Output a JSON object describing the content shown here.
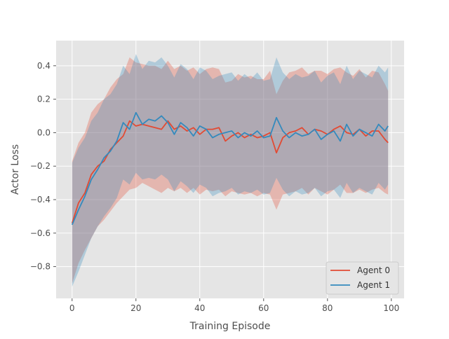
{
  "chart_data": {
    "type": "line",
    "title": "",
    "xlabel": "Training Episode",
    "ylabel": "Actor Loss",
    "xlim": [
      -5,
      104
    ],
    "ylim": [
      -0.99,
      0.55
    ],
    "xticks": [
      0,
      20,
      40,
      60,
      80,
      100
    ],
    "yticks": [
      -0.8,
      -0.6,
      -0.4,
      -0.2,
      0.0,
      0.2,
      0.4
    ],
    "xtick_labels": [
      "0",
      "20",
      "40",
      "60",
      "80",
      "100"
    ],
    "ytick_labels": [
      "−0.8",
      "−0.6",
      "−0.4",
      "−0.2",
      "0.0",
      "0.2",
      "0.4"
    ],
    "grid": true,
    "legend_position": "lower-right",
    "plot_background": "#e5e5e5",
    "grid_color": "#ffffff",
    "shaded_band": "mean ± std",
    "series": [
      {
        "name": "Agent 0",
        "color": "#e24a33",
        "x": [
          0,
          2,
          4,
          6,
          8,
          10,
          12,
          14,
          16,
          18,
          20,
          22,
          24,
          26,
          28,
          30,
          32,
          34,
          36,
          38,
          40,
          42,
          44,
          46,
          48,
          50,
          52,
          54,
          56,
          58,
          60,
          62,
          64,
          66,
          68,
          70,
          72,
          74,
          76,
          78,
          80,
          82,
          84,
          86,
          88,
          90,
          92,
          94,
          96,
          98,
          99
        ],
        "mean": [
          -0.54,
          -0.42,
          -0.36,
          -0.25,
          -0.2,
          -0.17,
          -0.1,
          -0.06,
          -0.02,
          0.07,
          0.04,
          0.05,
          0.04,
          0.03,
          0.02,
          0.07,
          0.02,
          0.04,
          0.01,
          0.03,
          -0.01,
          0.02,
          0.02,
          0.03,
          -0.05,
          -0.02,
          0.0,
          -0.03,
          -0.01,
          -0.03,
          -0.02,
          0.0,
          -0.12,
          -0.03,
          0.0,
          0.01,
          0.03,
          -0.01,
          0.02,
          0.01,
          -0.01,
          0.02,
          0.04,
          0.0,
          -0.01,
          0.02,
          -0.02,
          0.01,
          0.01,
          -0.04,
          -0.06
        ],
        "lower": [
          -0.9,
          -0.78,
          -0.7,
          -0.63,
          -0.56,
          -0.52,
          -0.47,
          -0.42,
          -0.38,
          -0.34,
          -0.33,
          -0.3,
          -0.32,
          -0.34,
          -0.36,
          -0.33,
          -0.35,
          -0.33,
          -0.36,
          -0.33,
          -0.37,
          -0.34,
          -0.35,
          -0.34,
          -0.38,
          -0.35,
          -0.36,
          -0.37,
          -0.36,
          -0.38,
          -0.36,
          -0.37,
          -0.46,
          -0.37,
          -0.36,
          -0.35,
          -0.33,
          -0.37,
          -0.33,
          -0.35,
          -0.37,
          -0.34,
          -0.31,
          -0.36,
          -0.36,
          -0.34,
          -0.36,
          -0.34,
          -0.33,
          -0.36,
          -0.37
        ],
        "upper": [
          -0.17,
          -0.06,
          0.0,
          0.12,
          0.17,
          0.2,
          0.27,
          0.32,
          0.35,
          0.45,
          0.42,
          0.41,
          0.4,
          0.4,
          0.38,
          0.43,
          0.38,
          0.4,
          0.37,
          0.39,
          0.35,
          0.38,
          0.39,
          0.38,
          0.3,
          0.31,
          0.35,
          0.33,
          0.34,
          0.32,
          0.32,
          0.37,
          0.23,
          0.31,
          0.36,
          0.37,
          0.39,
          0.35,
          0.37,
          0.37,
          0.35,
          0.38,
          0.39,
          0.36,
          0.34,
          0.38,
          0.33,
          0.37,
          0.36,
          0.29,
          0.25
        ]
      },
      {
        "name": "Agent 1",
        "color": "#348abd",
        "x": [
          0,
          2,
          4,
          6,
          8,
          10,
          12,
          14,
          16,
          18,
          20,
          22,
          24,
          26,
          28,
          30,
          32,
          34,
          36,
          38,
          40,
          42,
          44,
          46,
          48,
          50,
          52,
          54,
          56,
          58,
          60,
          62,
          64,
          66,
          68,
          70,
          72,
          74,
          76,
          78,
          80,
          82,
          84,
          86,
          88,
          90,
          92,
          94,
          96,
          98,
          99
        ],
        "mean": [
          -0.55,
          -0.46,
          -0.38,
          -0.28,
          -0.22,
          -0.15,
          -0.11,
          -0.05,
          0.06,
          0.02,
          0.12,
          0.05,
          0.08,
          0.07,
          0.1,
          0.06,
          -0.01,
          0.06,
          0.03,
          -0.02,
          0.04,
          0.02,
          -0.03,
          -0.01,
          0.0,
          0.01,
          -0.03,
          0.0,
          -0.02,
          0.01,
          -0.03,
          -0.02,
          0.09,
          0.01,
          -0.03,
          0.0,
          -0.02,
          -0.01,
          0.02,
          -0.04,
          -0.01,
          0.01,
          -0.05,
          0.05,
          -0.02,
          0.02,
          0.0,
          -0.02,
          0.05,
          0.01,
          0.04
        ],
        "lower": [
          -0.92,
          -0.83,
          -0.73,
          -0.63,
          -0.56,
          -0.5,
          -0.45,
          -0.39,
          -0.28,
          -0.31,
          -0.24,
          -0.28,
          -0.27,
          -0.28,
          -0.25,
          -0.28,
          -0.35,
          -0.29,
          -0.32,
          -0.36,
          -0.31,
          -0.33,
          -0.38,
          -0.36,
          -0.35,
          -0.33,
          -0.37,
          -0.35,
          -0.36,
          -0.34,
          -0.37,
          -0.36,
          -0.27,
          -0.34,
          -0.38,
          -0.35,
          -0.37,
          -0.36,
          -0.33,
          -0.38,
          -0.35,
          -0.34,
          -0.39,
          -0.3,
          -0.36,
          -0.33,
          -0.35,
          -0.37,
          -0.3,
          -0.34,
          -0.31
        ],
        "upper": [
          -0.18,
          -0.09,
          -0.03,
          0.07,
          0.12,
          0.2,
          0.23,
          0.29,
          0.4,
          0.35,
          0.47,
          0.38,
          0.43,
          0.42,
          0.45,
          0.4,
          0.33,
          0.41,
          0.38,
          0.32,
          0.39,
          0.37,
          0.32,
          0.34,
          0.35,
          0.36,
          0.31,
          0.35,
          0.32,
          0.36,
          0.31,
          0.32,
          0.45,
          0.36,
          0.32,
          0.35,
          0.33,
          0.34,
          0.37,
          0.3,
          0.34,
          0.36,
          0.29,
          0.4,
          0.32,
          0.37,
          0.35,
          0.33,
          0.4,
          0.36,
          0.39
        ]
      }
    ]
  }
}
